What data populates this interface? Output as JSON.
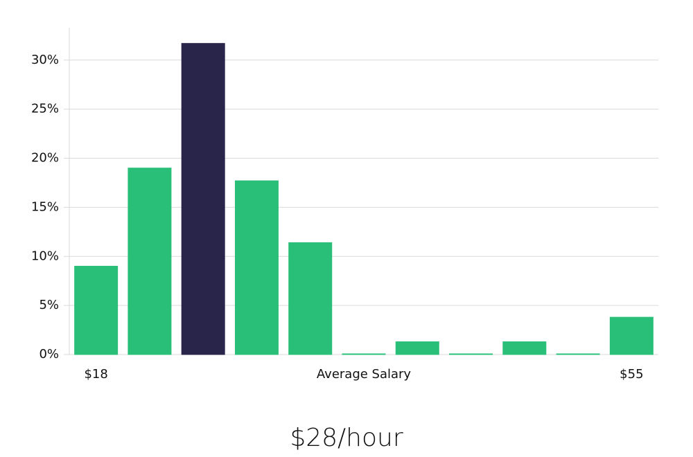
{
  "chart_data": {
    "type": "bar",
    "categories": [
      "$18",
      null,
      null,
      null,
      null,
      null,
      null,
      null,
      null,
      null,
      "$55"
    ],
    "values": [
      9,
      19,
      31.7,
      17.7,
      11.4,
      0,
      1.3,
      0,
      1.3,
      0,
      3.8
    ],
    "colors": [
      "#2abf78",
      "#2abf78",
      "#29254a",
      "#2abf78",
      "#2abf78",
      "#2abf78",
      "#2abf78",
      "#2abf78",
      "#2abf78",
      "#2abf78",
      "#2abf78"
    ],
    "x_label": "Average Salary",
    "ylim": [
      0,
      33.3
    ],
    "yticks": [
      {
        "value": 0,
        "label": "0%"
      },
      {
        "value": 5,
        "label": "5%"
      },
      {
        "value": 10,
        "label": "10%"
      },
      {
        "value": 15,
        "label": "15%"
      },
      {
        "value": 20,
        "label": "20%"
      },
      {
        "value": 25,
        "label": "25%"
      },
      {
        "value": 30,
        "label": "30%"
      }
    ],
    "grid": true,
    "footer": "$28/hour"
  }
}
